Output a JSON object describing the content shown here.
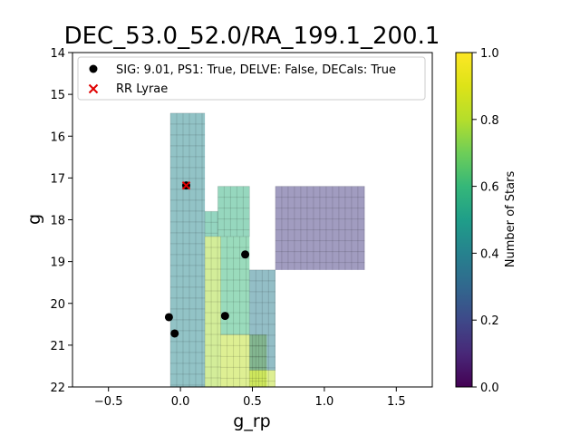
{
  "chart_data": {
    "type": "heatmap",
    "title": "DEC_53.0_52.0/RA_199.1_200.1",
    "xlabel": "g_rp",
    "ylabel": "g",
    "xlim": [
      -0.75,
      1.75
    ],
    "ylim": [
      22,
      14
    ],
    "x_ticks": [
      -0.5,
      0.0,
      0.5,
      1.0,
      1.5
    ],
    "x_tick_labels": [
      "−0.5",
      "0.0",
      "0.5",
      "1.0",
      "1.5"
    ],
    "y_ticks": [
      14,
      15,
      16,
      17,
      18,
      19,
      20,
      21,
      22
    ],
    "y_tick_labels": [
      "14",
      "15",
      "16",
      "17",
      "18",
      "19",
      "20",
      "21",
      "22"
    ],
    "colorbar": {
      "label": "Number of Stars",
      "range": [
        0.0,
        1.0
      ],
      "ticks": [
        0.0,
        0.2,
        0.4,
        0.6,
        0.8,
        1.0
      ],
      "tick_labels": [
        "0.0",
        "0.2",
        "0.4",
        "0.6",
        "0.8",
        "1.0"
      ],
      "colormap": "viridis"
    },
    "heatmap_alpha": 0.5,
    "heatmap_cells": [
      {
        "x0": -0.07,
        "x1": 0.17,
        "y0": 15.45,
        "y1": 22.0,
        "value": 0.42
      },
      {
        "x0": 0.17,
        "x1": 0.26,
        "y0": 17.8,
        "y1": 18.4,
        "value": 0.55
      },
      {
        "x0": 0.26,
        "x1": 0.48,
        "y0": 17.2,
        "y1": 18.4,
        "value": 0.57
      },
      {
        "x0": 0.17,
        "x1": 0.28,
        "y0": 18.4,
        "y1": 22.0,
        "value": 0.78
      },
      {
        "x0": 0.28,
        "x1": 0.48,
        "y0": 18.4,
        "y1": 20.75,
        "value": 0.6
      },
      {
        "x0": 0.28,
        "x1": 0.6,
        "y0": 20.75,
        "y1": 22.0,
        "value": 0.82
      },
      {
        "x0": 0.48,
        "x1": 0.66,
        "y0": 21.6,
        "y1": 22.0,
        "value": 0.82
      },
      {
        "x0": 0.48,
        "x1": 0.66,
        "y0": 19.2,
        "y1": 21.6,
        "value": 0.38
      },
      {
        "x0": 0.66,
        "x1": 1.28,
        "y0": 17.2,
        "y1": 19.2,
        "value": 0.15
      }
    ],
    "legend": {
      "placement": "upper-left",
      "entries": [
        {
          "label": "SIG: 9.01, PS1: True, DELVE: False, DECals: True",
          "marker": "circle",
          "color": "#000000"
        },
        {
          "label": "RR Lyrae",
          "marker": "x",
          "color": "#e00000"
        }
      ]
    },
    "series": [
      {
        "label": "SIG: 9.01, PS1: True, DELVE: False, DECals: True",
        "marker": "circle",
        "color": "#000000",
        "points": [
          {
            "x": 0.04,
            "y": 17.18
          },
          {
            "x": 0.45,
            "y": 18.83
          },
          {
            "x": 0.31,
            "y": 20.3
          },
          {
            "x": -0.08,
            "y": 20.33
          },
          {
            "x": -0.04,
            "y": 20.72
          }
        ]
      },
      {
        "label": "RR Lyrae",
        "marker": "x",
        "color": "#e00000",
        "points": [
          {
            "x": 0.04,
            "y": 17.18
          }
        ]
      }
    ]
  }
}
